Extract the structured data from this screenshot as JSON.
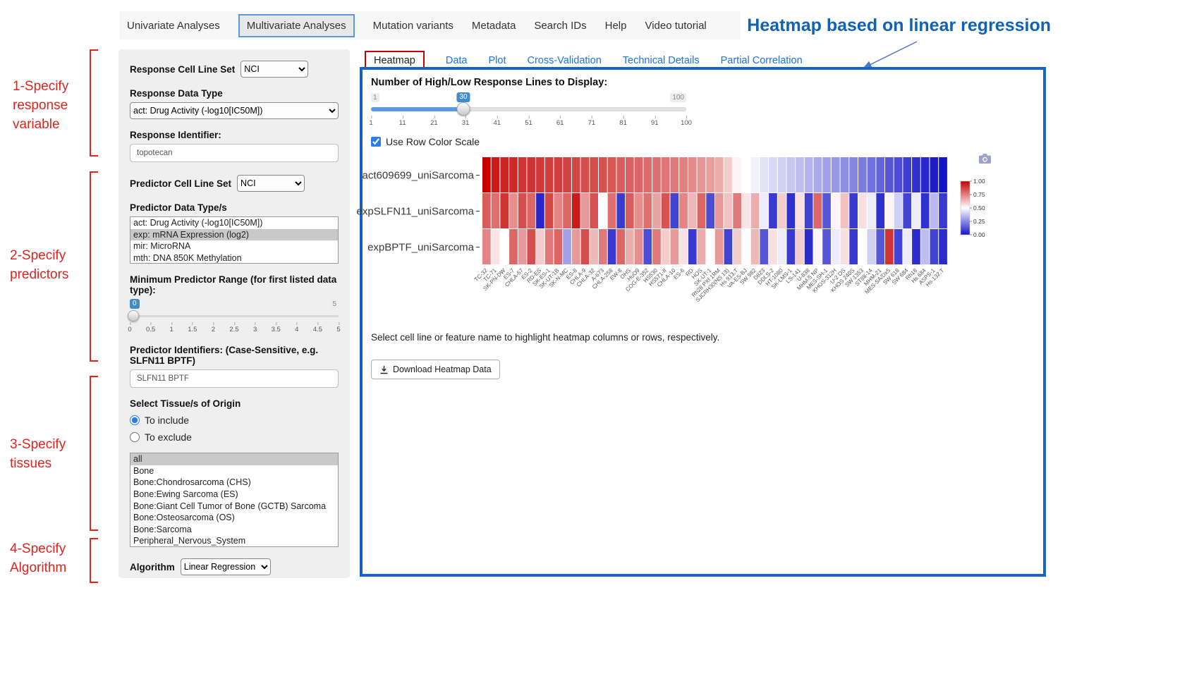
{
  "nav": {
    "items": [
      {
        "label": "Univariate Analyses",
        "active": false
      },
      {
        "label": "Multivariate Analyses",
        "active": true
      },
      {
        "label": "Mutation variants",
        "active": false
      },
      {
        "label": "Metadata",
        "active": false
      },
      {
        "label": "Search IDs",
        "active": false
      },
      {
        "label": "Help",
        "active": false
      },
      {
        "label": "Video tutorial",
        "active": false
      }
    ]
  },
  "headline": {
    "text": "Heatmap based on linear regression",
    "color": "#0f62b4"
  },
  "annotations": [
    {
      "label": "1-Specify\nresponse\nvariable"
    },
    {
      "label": "2-Specify\npredictors"
    },
    {
      "label": "3-Specify\ntissues"
    },
    {
      "label": "4-Specify\nAlgorithm"
    }
  ],
  "sidebar": {
    "response_cell_line_set": {
      "label": "Response Cell Line Set",
      "value": "NCI"
    },
    "response_data_type": {
      "label": "Response Data Type",
      "value": "act: Drug Activity (-log10[IC50M])"
    },
    "response_identifier": {
      "label": "Response Identifier:",
      "value": "topotecan"
    },
    "predictor_cell_line_set": {
      "label": "Predictor Cell Line Set",
      "value": "NCI"
    },
    "predictor_data_types": {
      "label": "Predictor Data Type/s",
      "options": [
        "act: Drug Activity (-log10[IC50M])",
        "exp: mRNA Expression (log2)",
        "mir: MicroRNA",
        "mth: DNA 850K Methylation"
      ],
      "selected": "exp: mRNA Expression (log2)"
    },
    "min_predictor_range": {
      "label": "Minimum Predictor Range (for first listed data type):",
      "value": "0",
      "min": "0",
      "max": "5",
      "ticks": [
        "0",
        "0.5",
        "1",
        "1.5",
        "2",
        "2.5",
        "3",
        "3.5",
        "4",
        "4.5",
        "5"
      ]
    },
    "predictor_identifiers": {
      "label": "Predictor Identifiers: (Case-Sensitive, e.g. SLFN11 BPTF)",
      "value": "SLFN11 BPTF"
    },
    "tissue": {
      "label": "Select Tissue/s of Origin",
      "radios": [
        {
          "label": "To include",
          "selected": true
        },
        {
          "label": "To exclude",
          "selected": false
        }
      ],
      "options": [
        "all",
        "Bone",
        "Bone:Chondrosarcoma (CHS)",
        "Bone:Ewing Sarcoma (ES)",
        "Bone:Giant Cell Tumor of Bone (GCTB) Sarcoma",
        "Bone:Osteosarcoma (OS)",
        "Bone:Sarcoma",
        "Peripheral_Nervous_System"
      ],
      "selected": "all"
    },
    "algorithm": {
      "label": "Algorithm",
      "value": "Linear Regression"
    }
  },
  "panel": {
    "tabs": [
      {
        "label": "Heatmap",
        "active": true
      },
      {
        "label": "Data",
        "active": false
      },
      {
        "label": "Plot",
        "active": false
      },
      {
        "label": "Cross-Validation",
        "active": false
      },
      {
        "label": "Technical Details",
        "active": false
      },
      {
        "label": "Partial Correlation",
        "active": false
      }
    ],
    "lines_slider": {
      "label": "Number of High/Low Response Lines to Display:",
      "value": "30",
      "min": "1",
      "max": "100",
      "ticks": [
        "1",
        "11",
        "21",
        "31",
        "41",
        "51",
        "61",
        "71",
        "81",
        "91",
        "100"
      ]
    },
    "row_color_checkbox": {
      "label": "Use Row Color Scale",
      "checked": true
    },
    "help_text": "Select cell line or feature name to highlight heatmap columns or rows, respectively.",
    "download_button": "Download Heatmap Data"
  },
  "colors": {
    "panel_border": "#1566c2",
    "annotation_red": "#e0241c",
    "headline_blue": "#0f62b4",
    "active_tab_border": "#cc0000",
    "link_blue": "#1a73e8",
    "slider_blue": "#428bca"
  },
  "chart_data": {
    "type": "heatmap",
    "title": "",
    "columns": [
      "TC-32",
      "TC-71",
      "SK-PN-DW",
      "ES-7",
      "CHLA-57",
      "ES-2",
      "RD-ES",
      "SK-ES-1",
      "SK-UT-1B",
      "SK-N-MC",
      "ES-8",
      "CHLA-9",
      "CHLA-32",
      "A-673",
      "CHLA-258",
      "EW-8",
      "OHS",
      "HuO9",
      "COG-E-352",
      "HS530",
      "HS571-II",
      "CHLA-10",
      "ES-6",
      "RD",
      "HOS",
      "SK-UT-1",
      "Rh28 PXf 1RM",
      "SJCRH30(NS 13)",
      "Hs 913.T",
      "VA-ES-BJ",
      "SW 982",
      "D823",
      "DDLS-2",
      "HT-1080",
      "SK-LMS-1",
      "LS-141",
      "U-838",
      "MHM-5 NP",
      "MES-SH-1",
      "KHOS-312H",
      "U-2 OS",
      "KHOS 240S",
      "SW 1353",
      "ST88-14",
      "MHM-21",
      "MES-SA/Dx5",
      "SW 618",
      "SW 684",
      "Rh18",
      "Hs 684",
      "ASPS-1",
      "Hs 132.T"
    ],
    "series": [
      {
        "name": "act609699_uniSarcoma",
        "values": [
          1.0,
          0.95,
          0.93,
          0.92,
          0.9,
          0.9,
          0.89,
          0.88,
          0.88,
          0.87,
          0.86,
          0.85,
          0.85,
          0.84,
          0.83,
          0.82,
          0.81,
          0.8,
          0.79,
          0.78,
          0.77,
          0.76,
          0.75,
          0.73,
          0.71,
          0.69,
          0.66,
          0.6,
          0.52,
          0.5,
          0.47,
          0.44,
          0.42,
          0.4,
          0.38,
          0.36,
          0.34,
          0.32,
          0.3,
          0.28,
          0.26,
          0.24,
          0.22,
          0.2,
          0.17,
          0.14,
          0.12,
          0.09,
          0.06,
          0.04,
          0.02,
          0.0
        ]
      },
      {
        "name": "expSLFN11_uniSarcoma",
        "values": [
          0.82,
          0.78,
          0.9,
          0.72,
          0.85,
          0.8,
          0.04,
          0.86,
          0.74,
          0.8,
          0.95,
          0.7,
          0.84,
          0.5,
          0.78,
          0.08,
          0.82,
          0.72,
          0.78,
          0.68,
          0.84,
          0.1,
          0.74,
          0.64,
          0.8,
          0.12,
          0.7,
          0.62,
          0.76,
          0.55,
          0.66,
          0.46,
          0.08,
          0.6,
          0.06,
          0.56,
          0.1,
          0.8,
          0.14,
          0.52,
          0.62,
          0.08,
          0.56,
          0.46,
          0.06,
          0.52,
          0.4,
          0.1,
          0.46,
          0.06,
          0.35,
          0.08
        ]
      },
      {
        "name": "expBPTF_uniSarcoma",
        "values": [
          0.74,
          0.55,
          0.5,
          0.8,
          0.7,
          0.85,
          0.6,
          0.76,
          0.8,
          0.3,
          0.7,
          0.85,
          0.64,
          0.76,
          0.08,
          0.8,
          0.66,
          0.72,
          0.12,
          0.76,
          0.6,
          0.7,
          0.56,
          0.08,
          0.66,
          0.5,
          0.7,
          0.1,
          0.6,
          0.5,
          0.64,
          0.14,
          0.56,
          0.46,
          0.08,
          0.6,
          0.05,
          0.52,
          0.14,
          0.46,
          0.56,
          0.08,
          0.5,
          0.4,
          0.14,
          0.9,
          0.1,
          0.46,
          0.05,
          0.36,
          0.1,
          0.05
        ]
      }
    ],
    "colorscale": {
      "min": 0,
      "max": 1,
      "high_color": "#c40000",
      "mid_color": "#ffffff",
      "low_color": "#1414c8",
      "legend_ticks": [
        "1.00",
        "0.75",
        "0.50",
        "0.25",
        "0.00"
      ]
    }
  }
}
